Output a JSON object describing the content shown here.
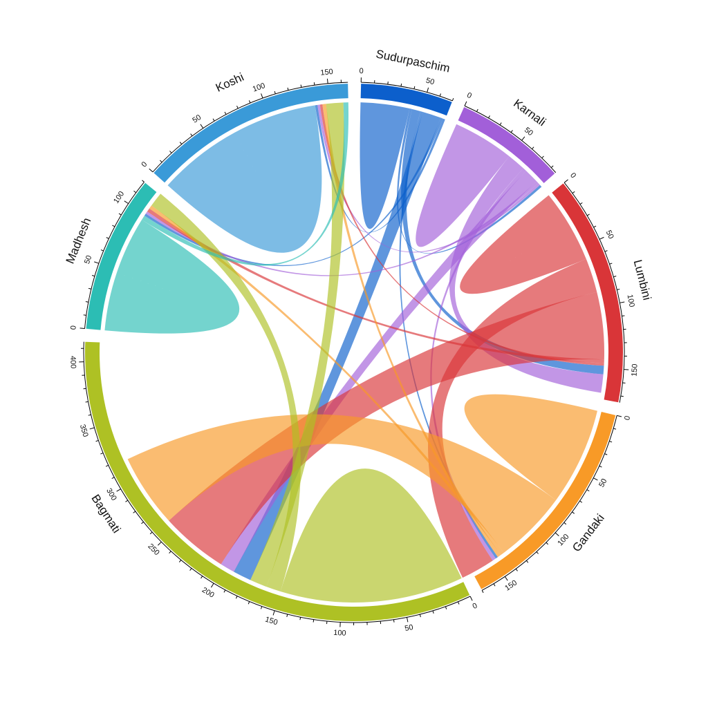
{
  "chart_data": {
    "type": "chord",
    "title": "",
    "sectors": [
      {
        "name": "Sudurpaschim",
        "total": 70,
        "color": "#0c5fcc",
        "ticks": [
          "0",
          "50"
        ]
      },
      {
        "name": "Karnali",
        "total": 85,
        "color": "#a25fd9",
        "ticks": [
          "0",
          "50"
        ]
      },
      {
        "name": "Lumbini",
        "total": 175,
        "color": "#d93538",
        "ticks": [
          "0",
          "50",
          "100",
          "150"
        ]
      },
      {
        "name": "Gandaki",
        "total": 170,
        "color": "#f89a27",
        "ticks": [
          "0",
          "50",
          "100",
          "150"
        ]
      },
      {
        "name": "Bagmati",
        "total": 415,
        "color": "#aec124",
        "ticks": [
          "0",
          "50",
          "100",
          "150",
          "200",
          "250",
          "300",
          "350",
          "400"
        ]
      },
      {
        "name": "Madhesh",
        "total": 120,
        "color": "#2cbdb4",
        "ticks": [
          "0",
          "50",
          "100"
        ]
      },
      {
        "name": "Koshi",
        "total": 165,
        "color": "#3a9ad8",
        "ticks": [
          "0",
          "50",
          "100",
          "150"
        ]
      }
    ],
    "flows": [
      {
        "from": "Sudurpaschim",
        "to": "Sudurpaschim",
        "value": 40
      },
      {
        "from": "Sudurpaschim",
        "to": "Karnali",
        "value": 2
      },
      {
        "from": "Sudurpaschim",
        "to": "Lumbini",
        "value": 7
      },
      {
        "from": "Sudurpaschim",
        "to": "Gandaki",
        "value": 2
      },
      {
        "from": "Sudurpaschim",
        "to": "Bagmati",
        "value": 15
      },
      {
        "from": "Sudurpaschim",
        "to": "Madhesh",
        "value": 2
      },
      {
        "from": "Sudurpaschim",
        "to": "Koshi",
        "value": 2
      },
      {
        "from": "Karnali",
        "to": "Karnali",
        "value": 50
      },
      {
        "from": "Karnali",
        "to": "Lumbini",
        "value": 15
      },
      {
        "from": "Karnali",
        "to": "Gandaki",
        "value": 3
      },
      {
        "from": "Karnali",
        "to": "Bagmati",
        "value": 12
      },
      {
        "from": "Karnali",
        "to": "Madhesh",
        "value": 2
      },
      {
        "from": "Karnali",
        "to": "Koshi",
        "value": 2
      },
      {
        "from": "Lumbini",
        "to": "Lumbini",
        "value": 60
      },
      {
        "from": "Lumbini",
        "to": "Gandaki",
        "value": 28
      },
      {
        "from": "Lumbini",
        "to": "Bagmati",
        "value": 55
      },
      {
        "from": "Lumbini",
        "to": "Madhesh",
        "value": 3
      },
      {
        "from": "Lumbini",
        "to": "Koshi",
        "value": 2
      },
      {
        "from": "Gandaki",
        "to": "Gandaki",
        "value": 80
      },
      {
        "from": "Gandaki",
        "to": "Bagmati",
        "value": 60
      },
      {
        "from": "Gandaki",
        "to": "Madhesh",
        "value": 3
      },
      {
        "from": "Gandaki",
        "to": "Koshi",
        "value": 3
      },
      {
        "from": "Bagmati",
        "to": "Bagmati",
        "value": 150
      },
      {
        "from": "Bagmati",
        "to": "Madhesh",
        "value": 12
      },
      {
        "from": "Bagmati",
        "to": "Koshi",
        "value": 14
      },
      {
        "from": "Madhesh",
        "to": "Madhesh",
        "value": 95
      },
      {
        "from": "Madhesh",
        "to": "Koshi",
        "value": 4
      },
      {
        "from": "Koshi",
        "to": "Koshi",
        "value": 138
      }
    ]
  }
}
